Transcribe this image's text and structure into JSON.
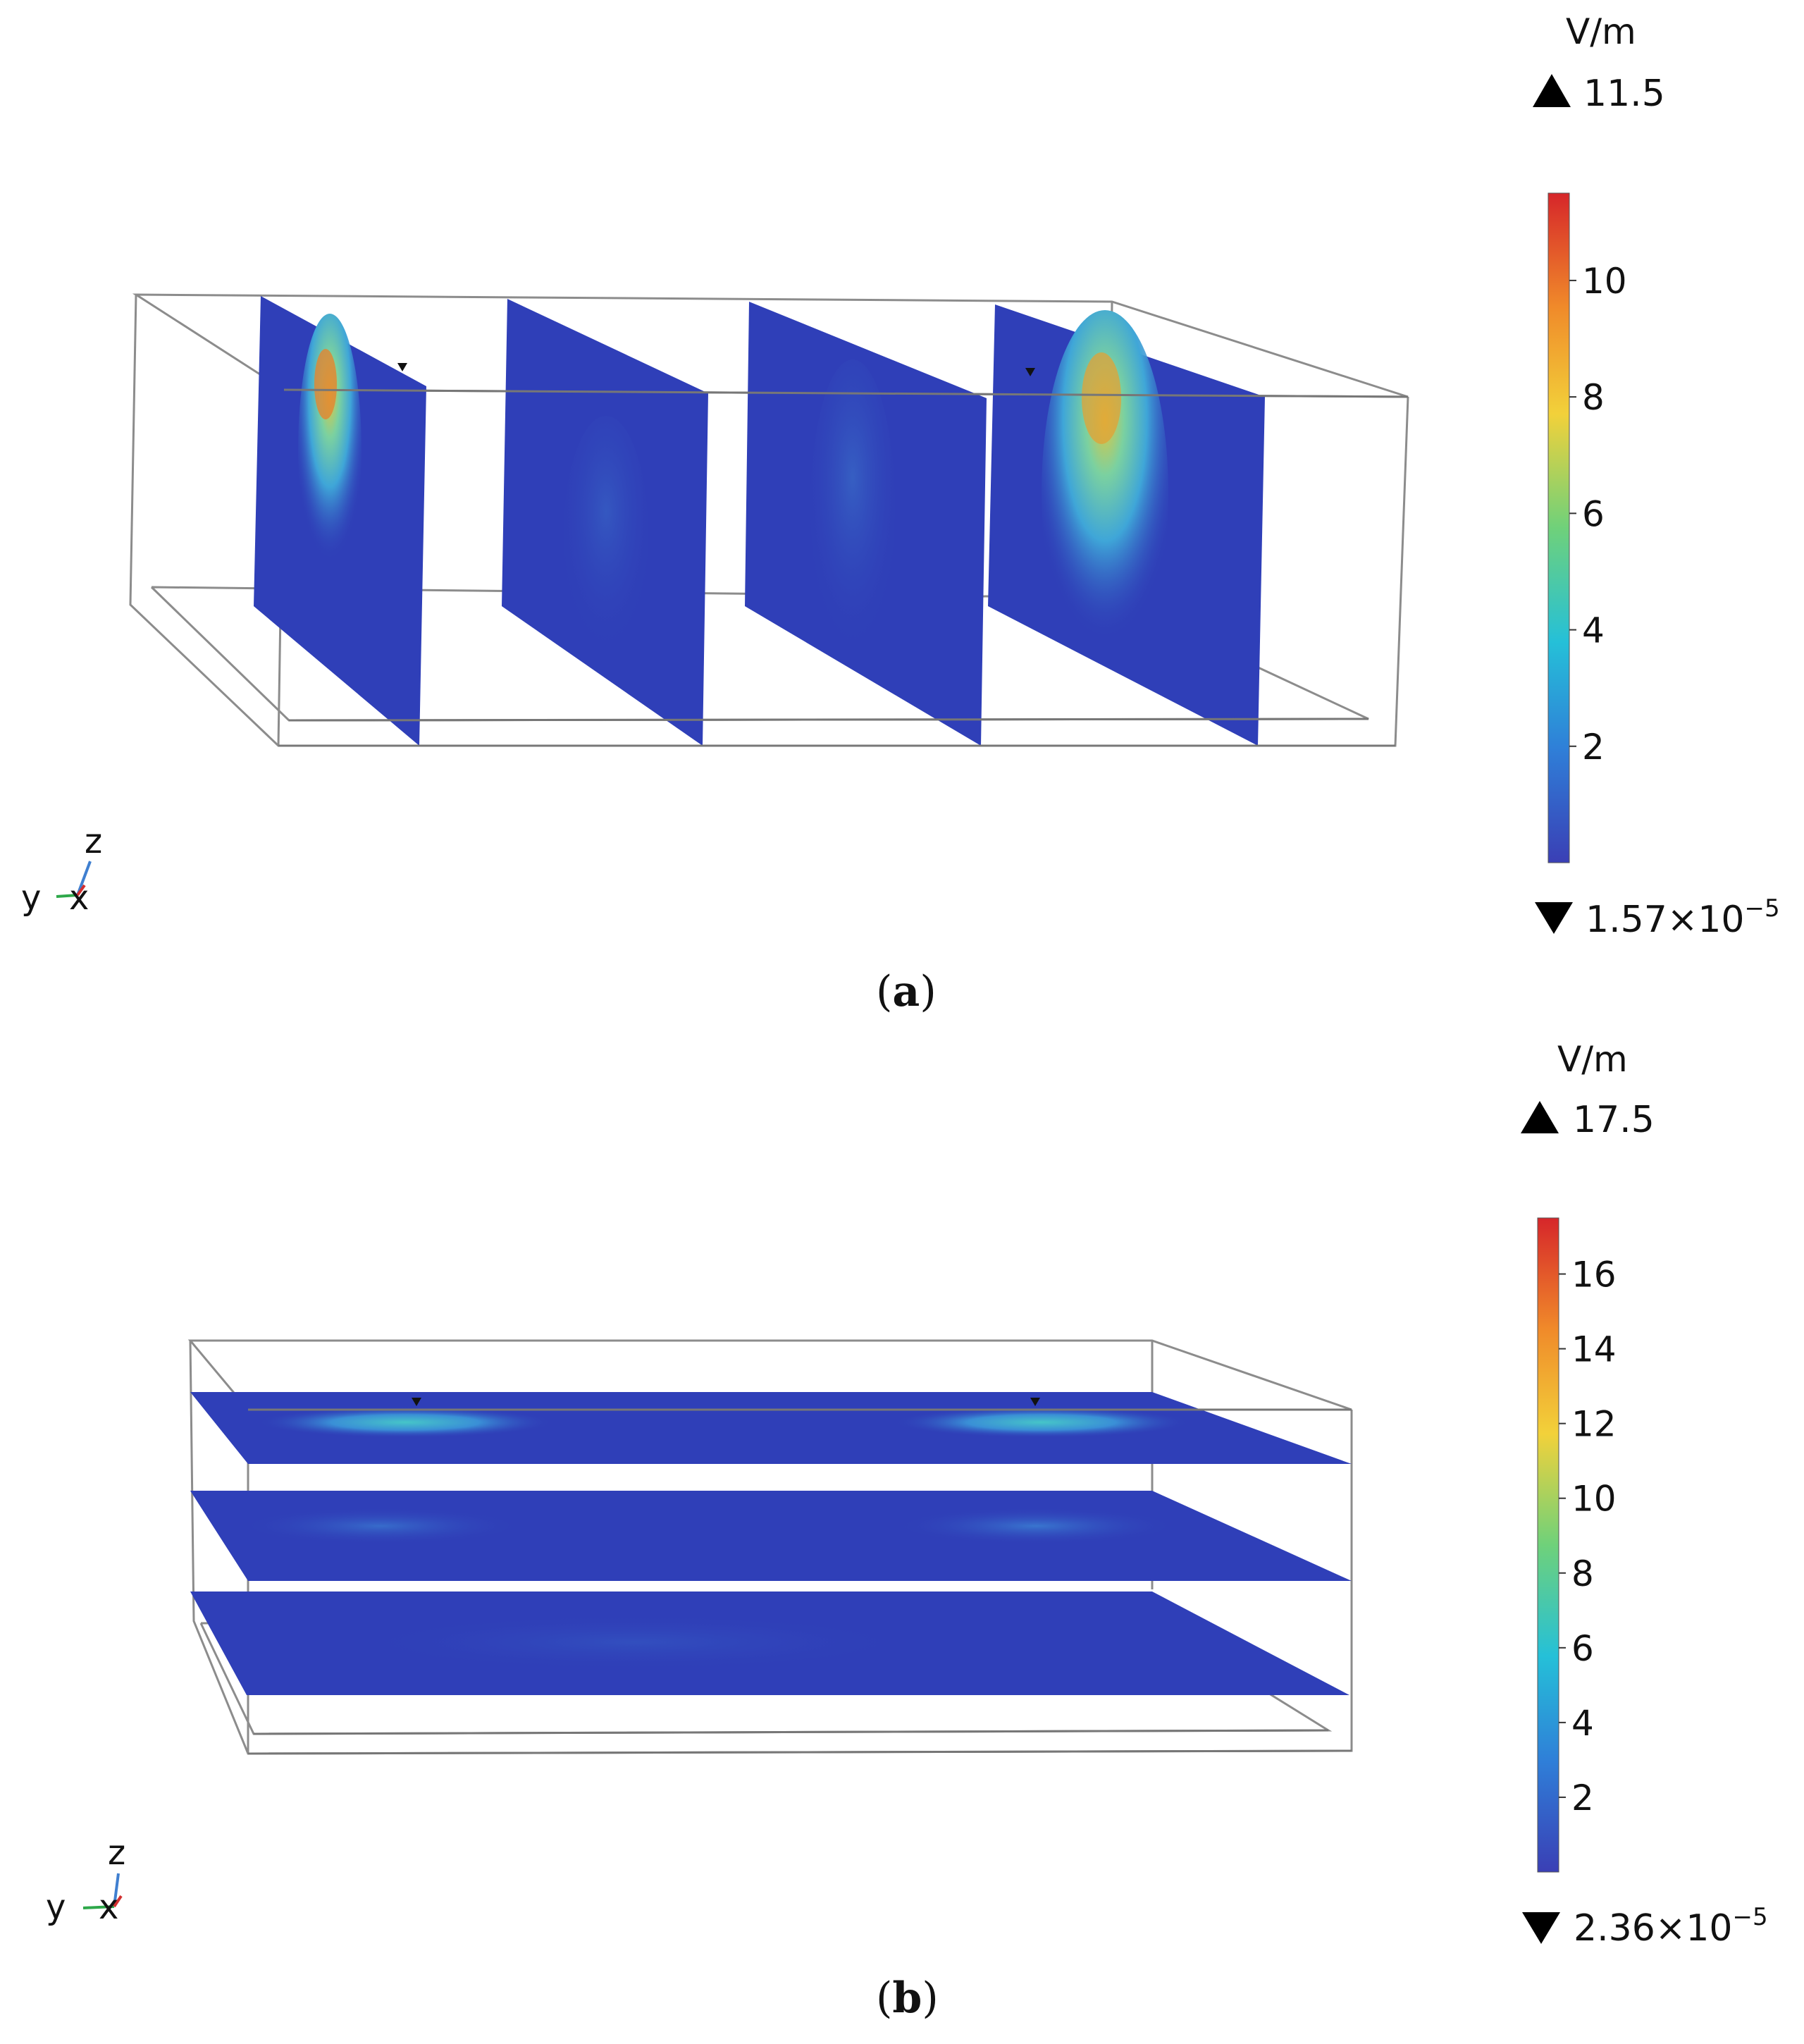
{
  "panels": [
    {
      "id": "a",
      "caption_letter": "a",
      "colorbar": {
        "unit": "V/m",
        "max_label": "11.5",
        "min_label_mantissa": "1.57×10",
        "min_label_exponent": "−5",
        "ticks": [
          "10",
          "8",
          "6",
          "4",
          "2"
        ],
        "max_value": 11.5
      },
      "axes": {
        "z": "z",
        "y": "y",
        "x": "x"
      },
      "slice_count": 4,
      "slice_orientation": "vertical"
    },
    {
      "id": "b",
      "caption_letter": "b",
      "colorbar": {
        "unit": "V/m",
        "max_label": "17.5",
        "min_label_mantissa": "2.36×10",
        "min_label_exponent": "−5",
        "ticks": [
          "16",
          "14",
          "12",
          "10",
          "8",
          "6",
          "4",
          "2"
        ],
        "max_value": 17.5
      },
      "axes": {
        "z": "z",
        "y": "y",
        "x": "x"
      },
      "slice_count": 3,
      "slice_orientation": "horizontal"
    }
  ],
  "colors": {
    "slice_base": "#2f3fb8",
    "colormap": [
      "#3a3fb5",
      "#2f7fd8",
      "#25c0d8",
      "#6fd17a",
      "#f2d13a",
      "#f08a2a",
      "#d6262a"
    ],
    "frame": "#888888",
    "axis_z": "#3f7fd0",
    "axis_y": "#2ea84a",
    "axis_x": "#d23030"
  }
}
